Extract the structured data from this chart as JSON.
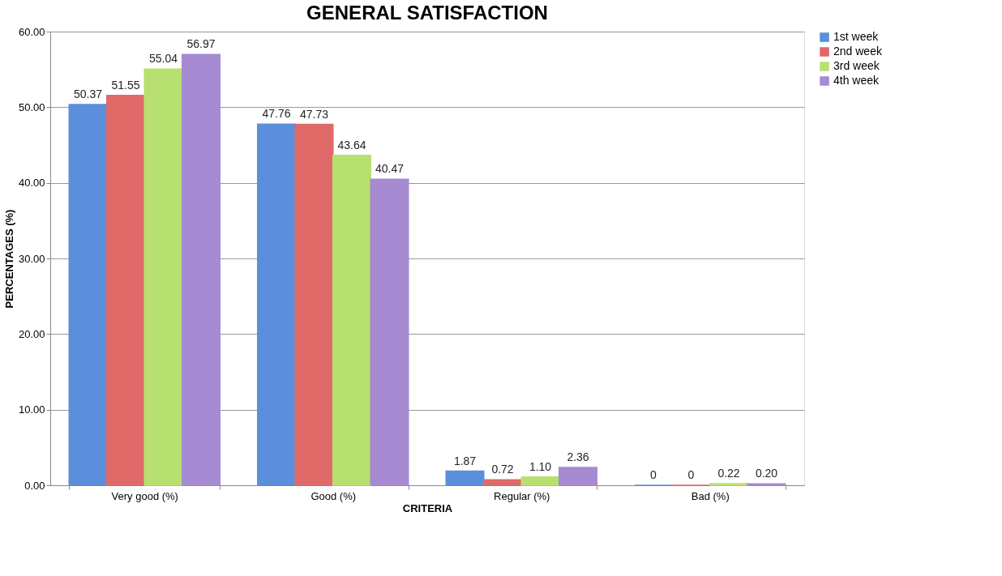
{
  "chart_data": {
    "type": "bar",
    "title": "GENERAL SATISFACTION",
    "xlabel": "CRITERIA",
    "ylabel": "PERCENTAGES (%)",
    "categories": [
      "Very good (%)",
      "Good (%)",
      "Regular (%)",
      "Bad (%)"
    ],
    "series": [
      {
        "name": "1st week",
        "color": "#5b8fdc",
        "values": [
          50.37,
          47.76,
          1.87,
          0
        ],
        "value_labels": [
          "50.37",
          "47.76",
          "1.87",
          "0"
        ]
      },
      {
        "name": "2nd week",
        "color": "#e06a68",
        "values": [
          51.55,
          47.73,
          0.72,
          0
        ],
        "value_labels": [
          "51.55",
          "47.73",
          "0.72",
          "0"
        ]
      },
      {
        "name": "3rd week",
        "color": "#b8e070",
        "values": [
          55.04,
          43.64,
          1.1,
          0.22
        ],
        "value_labels": [
          "55.04",
          "43.64",
          "1.10",
          "0.22"
        ]
      },
      {
        "name": "4th week",
        "color": "#a68ad2",
        "values": [
          56.97,
          40.47,
          2.36,
          0.2
        ],
        "value_labels": [
          "56.97",
          "40.47",
          "2.36",
          "0.20"
        ]
      }
    ],
    "ylim": [
      0,
      60
    ],
    "yticks": [
      {
        "value": 0,
        "label": "0.00"
      },
      {
        "value": 10,
        "label": "10.00"
      },
      {
        "value": 20,
        "label": "20.00"
      },
      {
        "value": 30,
        "label": "30.00"
      },
      {
        "value": 40,
        "label": "40.00"
      },
      {
        "value": 50,
        "label": "50.00"
      },
      {
        "value": 60,
        "label": "60.00"
      }
    ],
    "grid": "y",
    "legend": "right"
  }
}
